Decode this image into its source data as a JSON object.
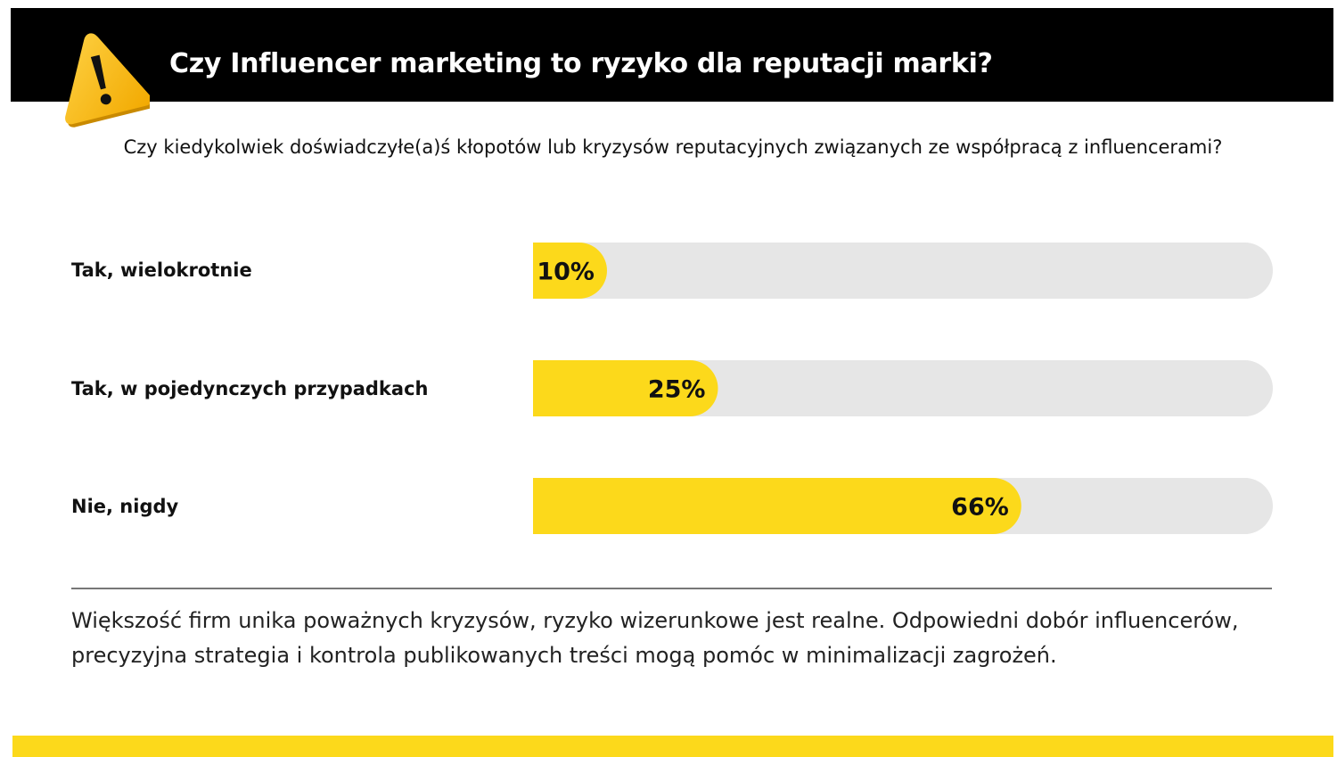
{
  "header": {
    "title": "Czy Influencer marketing to ryzyko dla reputacji marki?",
    "icon": "warning-icon"
  },
  "question": "Czy kiedykolwiek doświadczyłe(a)ś  kłopotów lub kryzysów reputacyjnych związanych ze współpracą z influencerami?",
  "colors": {
    "accent": "#fcd91b",
    "track": "#e6e6e6",
    "header_bg": "#000000"
  },
  "chart_data": {
    "type": "bar",
    "orientation": "horizontal",
    "categories": [
      "Tak, wielokrotnie",
      "Tak, w pojedynczych przypadkach",
      "Nie, nigdy"
    ],
    "values": [
      10,
      25,
      66
    ],
    "value_labels": [
      "10%",
      "25%",
      "66%"
    ],
    "unit": "%",
    "xlim": [
      0,
      100
    ],
    "grid": false,
    "legend": "none"
  },
  "summary": "Większość firm unika poważnych kryzysów, ryzyko wizerunkowe jest realne. Odpowiedni dobór influencerów, precyzyjna strategia i kontrola publikowanych treści mogą pomóc w minimalizacji zagrożeń."
}
